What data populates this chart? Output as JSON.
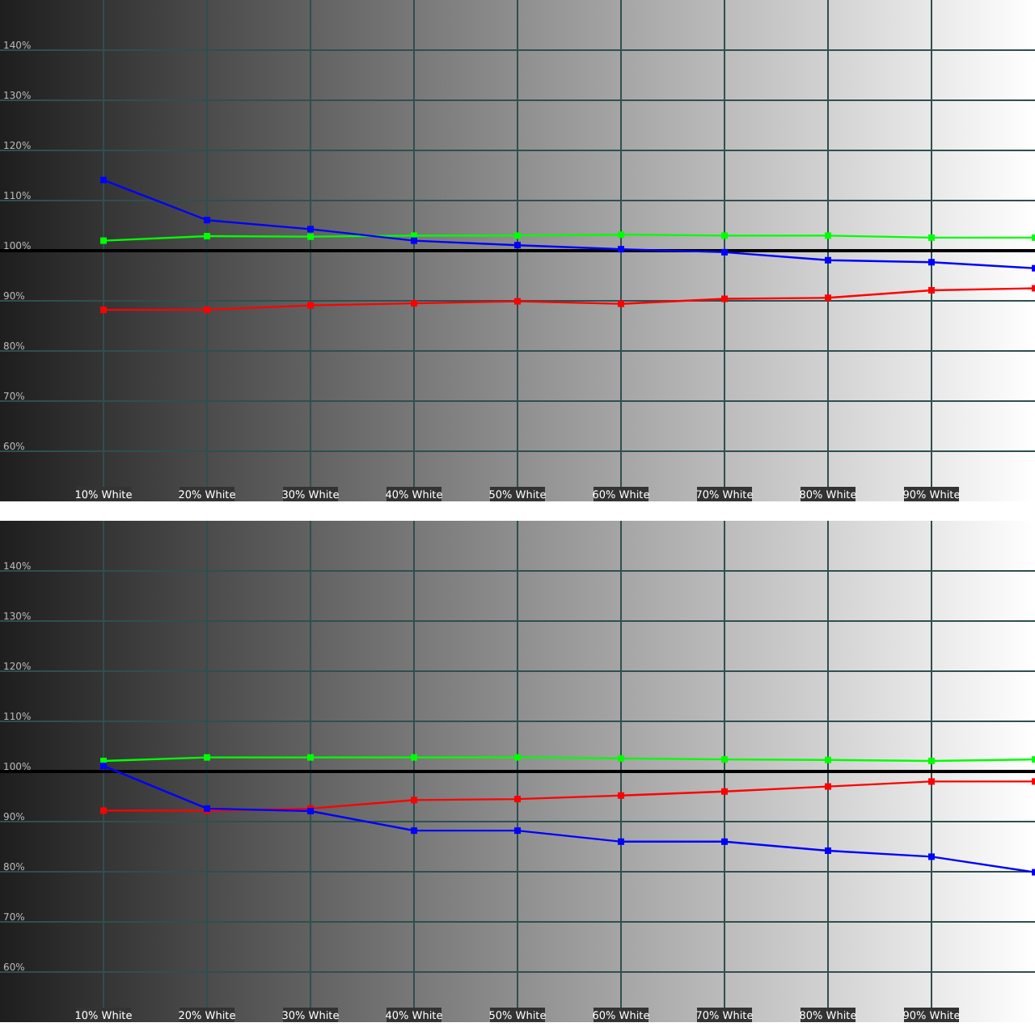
{
  "chart_data": [
    {
      "type": "line",
      "x": [
        10,
        20,
        30,
        40,
        50,
        60,
        70,
        80,
        90,
        100
      ],
      "xlim": [
        0,
        100
      ],
      "xticks": [
        {
          "value": 10,
          "label": "10% White"
        },
        {
          "value": 20,
          "label": "20% White"
        },
        {
          "value": 30,
          "label": "30% White"
        },
        {
          "value": 40,
          "label": "40% White"
        },
        {
          "value": 50,
          "label": "50% White"
        },
        {
          "value": 60,
          "label": "60% White"
        },
        {
          "value": 70,
          "label": "70% White"
        },
        {
          "value": 80,
          "label": "80% White"
        },
        {
          "value": 90,
          "label": "90% White"
        }
      ],
      "ylim": [
        50,
        150
      ],
      "yticks": [
        {
          "value": 60,
          "label": "60%"
        },
        {
          "value": 70,
          "label": "70%"
        },
        {
          "value": 80,
          "label": "80%"
        },
        {
          "value": 90,
          "label": "90%"
        },
        {
          "value": 100,
          "label": "100%"
        },
        {
          "value": 110,
          "label": "110%"
        },
        {
          "value": 120,
          "label": "120%"
        },
        {
          "value": 130,
          "label": "130%"
        },
        {
          "value": 140,
          "label": "140%"
        }
      ],
      "grid": true,
      "marker": "square",
      "ref_lines": [
        {
          "axis": "y",
          "value": 100,
          "color": "#000000"
        }
      ],
      "series": [
        {
          "color": "#ff0000",
          "values": [
            88.2,
            88.2,
            89.1,
            89.5,
            89.9,
            89.4,
            90.4,
            90.6,
            92.1,
            92.5
          ]
        },
        {
          "color": "#00ff00",
          "values": [
            102.0,
            102.9,
            102.8,
            103.0,
            103.0,
            103.2,
            103.0,
            103.0,
            102.6,
            102.6
          ]
        },
        {
          "color": "#0000ff",
          "values": [
            114.1,
            106.1,
            104.3,
            102.0,
            101.1,
            100.3,
            99.7,
            98.1,
            97.7,
            96.5
          ]
        }
      ]
    },
    {
      "type": "line",
      "x": [
        10,
        20,
        30,
        40,
        50,
        60,
        70,
        80,
        90,
        100
      ],
      "xlim": [
        0,
        100
      ],
      "xticks": [
        {
          "value": 10,
          "label": "10% White"
        },
        {
          "value": 20,
          "label": "20% White"
        },
        {
          "value": 30,
          "label": "30% White"
        },
        {
          "value": 40,
          "label": "40% White"
        },
        {
          "value": 50,
          "label": "50% White"
        },
        {
          "value": 60,
          "label": "60% White"
        },
        {
          "value": 70,
          "label": "70% White"
        },
        {
          "value": 80,
          "label": "80% White"
        },
        {
          "value": 90,
          "label": "90% White"
        }
      ],
      "ylim": [
        50,
        150
      ],
      "yticks": [
        {
          "value": 60,
          "label": "60%"
        },
        {
          "value": 70,
          "label": "70%"
        },
        {
          "value": 80,
          "label": "80%"
        },
        {
          "value": 90,
          "label": "90%"
        },
        {
          "value": 100,
          "label": "100%"
        },
        {
          "value": 110,
          "label": "110%"
        },
        {
          "value": 120,
          "label": "120%"
        },
        {
          "value": 130,
          "label": "130%"
        },
        {
          "value": 140,
          "label": "140%"
        }
      ],
      "grid": true,
      "marker": "square",
      "ref_lines": [
        {
          "axis": "y",
          "value": 100,
          "color": "#000000"
        }
      ],
      "series": [
        {
          "color": "#ff0000",
          "values": [
            92.2,
            92.2,
            92.6,
            94.3,
            94.5,
            95.2,
            96.0,
            97.0,
            98.0,
            98.0
          ]
        },
        {
          "color": "#00ff00",
          "values": [
            102.1,
            102.8,
            102.8,
            102.8,
            102.8,
            102.6,
            102.4,
            102.3,
            102.1,
            102.4
          ]
        },
        {
          "color": "#0000ff",
          "values": [
            101.1,
            92.6,
            92.1,
            88.2,
            88.2,
            86.0,
            86.0,
            84.2,
            83.0,
            79.9
          ]
        }
      ]
    }
  ]
}
